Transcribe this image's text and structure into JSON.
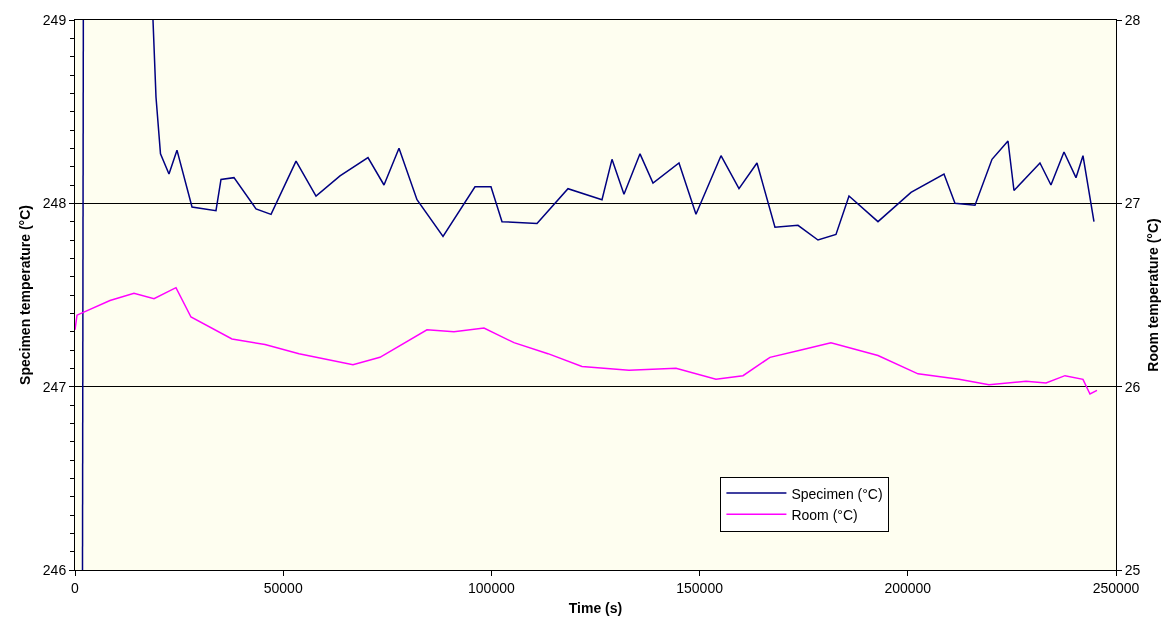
{
  "chart_data": {
    "type": "line",
    "xlabel": "Time (s)",
    "ylabel": "Specimen temperature (°C)",
    "y2label": "Room temperature (°C)",
    "xlim": [
      0,
      250000
    ],
    "xticks": [
      0,
      50000,
      100000,
      150000,
      200000,
      250000
    ],
    "ylim": [
      246,
      249
    ],
    "yticks": [
      246,
      {
        "value": 246.1,
        "label": null
      },
      {
        "value": 246.2,
        "label": null
      },
      {
        "value": 246.3,
        "label": null
      },
      {
        "value": 246.4,
        "label": null
      },
      {
        "value": 246.5,
        "label": null
      },
      {
        "value": 246.6,
        "label": null
      },
      {
        "value": 246.7,
        "label": null
      },
      {
        "value": 246.8,
        "label": null
      },
      {
        "value": 246.9,
        "label": null
      },
      247,
      {
        "value": 247.1,
        "label": null
      },
      {
        "value": 247.2,
        "label": null
      },
      {
        "value": 247.3,
        "label": null
      },
      {
        "value": 247.4,
        "label": null
      },
      {
        "value": 247.5,
        "label": null
      },
      {
        "value": 247.6,
        "label": null
      },
      {
        "value": 247.7,
        "label": null
      },
      {
        "value": 247.8,
        "label": null
      },
      {
        "value": 247.9,
        "label": null
      },
      248,
      {
        "value": 248.1,
        "label": null
      },
      {
        "value": 248.2,
        "label": null
      },
      {
        "value": 248.3,
        "label": null
      },
      {
        "value": 248.4,
        "label": null
      },
      {
        "value": 248.5,
        "label": null
      },
      {
        "value": 248.6,
        "label": null
      },
      {
        "value": 248.7,
        "label": null
      },
      {
        "value": 248.8,
        "label": null
      },
      {
        "value": 248.9,
        "label": null
      },
      249
    ],
    "y2lim": [
      25,
      28
    ],
    "y2ticks": [
      25,
      26,
      27,
      28
    ],
    "grid": "y",
    "legend": "bottom right",
    "marker": "none",
    "line_style": "solid",
    "series": [
      {
        "name": "Specimen (°C)",
        "color": "#000080",
        "x": [
          1800,
          2000,
          10000,
          18730,
          19450,
          20530,
          22570,
          24490,
          28100,
          33860,
          35060,
          38180,
          43470,
          47080,
          53080,
          57880,
          63640,
          70360,
          74210,
          77810,
          82130,
          88380,
          96060,
          99900,
          102550,
          110950,
          118390,
          126560,
          128960,
          131840,
          135690,
          138810,
          145050,
          149130,
          155140,
          159460,
          163780,
          168100,
          173630,
          178430,
          182750,
          185880,
          192840,
          200770,
          208690,
          211330,
          216140,
          220220,
          224060,
          225500,
          231740,
          234380,
          237510,
          240390,
          242070,
          244710
        ],
        "values": [
          246,
          249,
          null,
          249,
          248.58,
          248.27,
          248.16,
          248.29,
          247.98,
          247.96,
          248.13,
          248.14,
          247.97,
          247.94,
          248.23,
          248.04,
          248.15,
          248.25,
          248.1,
          248.3,
          248.02,
          247.82,
          248.09,
          248.09,
          247.9,
          247.89,
          248.08,
          248.02,
          248.24,
          248.05,
          248.27,
          248.11,
          248.22,
          247.94,
          248.26,
          248.08,
          248.22,
          247.87,
          247.88,
          247.8,
          247.83,
          248.04,
          247.9,
          248.06,
          248.16,
          248,
          247.99,
          248.24,
          248.34,
          248.07,
          248.22,
          248.1,
          248.28,
          248.14,
          248.26,
          247.9
        ]
      },
      {
        "name": "Room (°C)",
        "color": "#ff00ff",
        "axis": "y2",
        "x": [
          0,
          480,
          8400,
          14170,
          18970,
          24250,
          27850,
          37700,
          45630,
          53790,
          66760,
          73240,
          84530,
          91010,
          98220,
          105420,
          113590,
          121750,
          133040,
          144330,
          153930,
          160420,
          166900,
          174350,
          181550,
          192840,
          202450,
          212300,
          219500,
          228390,
          233190,
          237750,
          242070,
          243750,
          245430
        ],
        "values": [
          26.31,
          26.39,
          26.47,
          26.51,
          26.48,
          26.54,
          26.38,
          26.26,
          26.23,
          26.18,
          26.12,
          26.16,
          26.31,
          26.3,
          26.32,
          26.24,
          26.18,
          26.11,
          26.09,
          26.1,
          26.04,
          26.06,
          26.16,
          26.2,
          26.24,
          26.17,
          26.07,
          26.04,
          26.01,
          26.03,
          26.02,
          26.06,
          26.04,
          25.96,
          25.98
        ]
      }
    ]
  }
}
